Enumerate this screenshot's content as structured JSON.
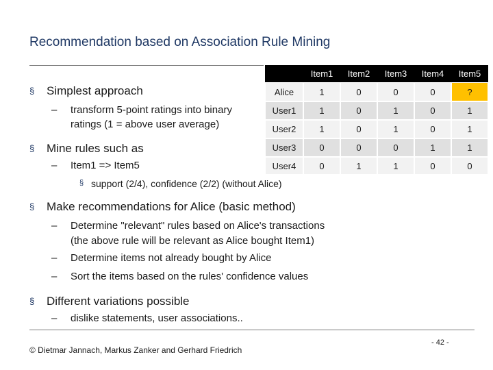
{
  "title": "Recommendation based on Association Rule Mining",
  "bullets": [
    {
      "text": "Simplest approach",
      "items": [
        {
          "lines": [
            "transform 5-point ratings into binary",
            "ratings (1 = above user average)"
          ]
        }
      ]
    },
    {
      "text": "Mine rules such as",
      "items": [
        {
          "lines": [
            "Item1 => Item5"
          ],
          "items": [
            "support (2/4), confidence (2/2) (without Alice)"
          ]
        }
      ]
    },
    {
      "text": "Make recommendations for Alice (basic method)",
      "items": [
        {
          "lines": [
            "Determine \"relevant\" rules based on Alice's transactions",
            "(the above rule will be relevant as Alice bought Item1)"
          ]
        },
        {
          "lines": [
            "Determine items not already bought by Alice"
          ]
        },
        {
          "lines": [
            "Sort the items based on the rules' confidence values"
          ]
        }
      ]
    },
    {
      "text": "Different variations possible",
      "items": [
        {
          "lines": [
            "dislike statements, user associations.."
          ]
        }
      ]
    }
  ],
  "table": {
    "header": [
      "Item1",
      "Item2",
      "Item3",
      "Item4",
      "Item5"
    ],
    "rows": [
      [
        "Alice",
        1,
        0,
        0,
        0,
        "?"
      ],
      [
        "User1",
        1,
        0,
        1,
        0,
        1
      ],
      [
        "User2",
        1,
        0,
        1,
        0,
        1
      ],
      [
        "User3",
        0,
        0,
        0,
        1,
        1
      ],
      [
        "User4",
        0,
        1,
        1,
        0,
        0
      ]
    ]
  },
  "footer": "© Dietmar Jannach, Markus Zanker and Gerhard Friedrich",
  "page_number": "- 42 -"
}
